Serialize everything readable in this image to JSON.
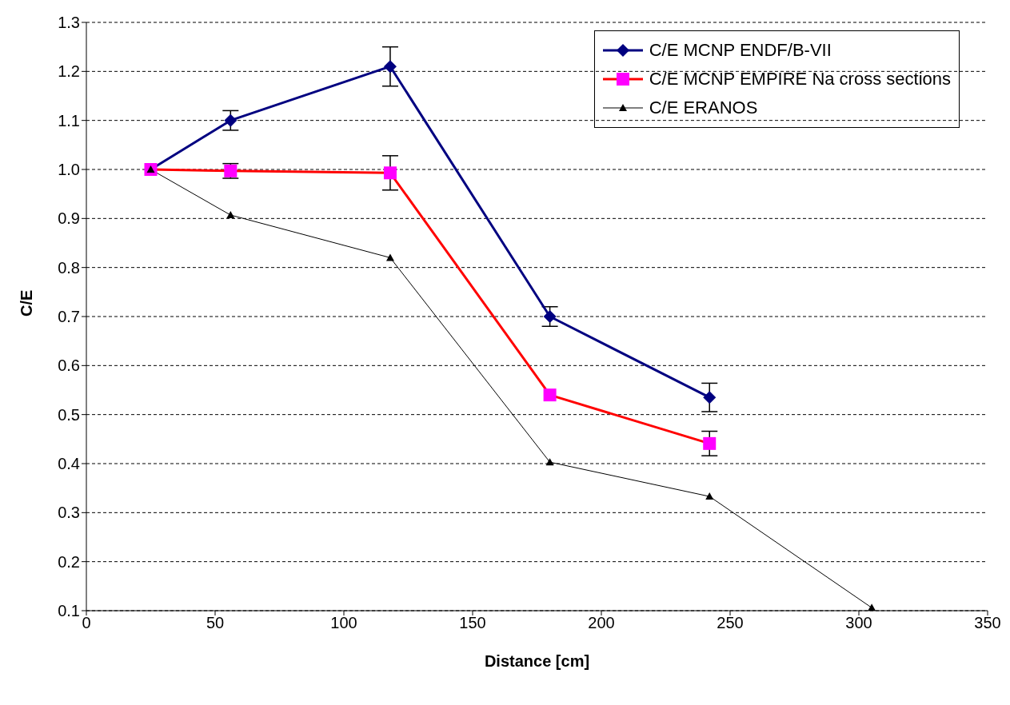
{
  "chart_data": {
    "type": "line",
    "xlabel": "Distance [cm]",
    "ylabel": "C/E",
    "xlim": [
      0,
      350
    ],
    "xticks": [
      0,
      50,
      100,
      150,
      200,
      250,
      300,
      350
    ],
    "ylim": [
      0.1,
      1.3
    ],
    "yticks": [
      {
        "value": 0.1,
        "label": "0.1"
      },
      {
        "value": 0.2,
        "label": "0.2"
      },
      {
        "value": 0.3,
        "label": "0.3"
      },
      {
        "value": 0.4,
        "label": "0.4"
      },
      {
        "value": 0.5,
        "label": "0.5"
      },
      {
        "value": 0.6,
        "label": "0.6"
      },
      {
        "value": 0.7,
        "label": "0.7"
      },
      {
        "value": 0.8,
        "label": "0.8"
      },
      {
        "value": 0.9,
        "label": "0.9"
      },
      {
        "value": 1.0,
        "label": "1.0"
      },
      {
        "value": 1.1,
        "label": "1.1"
      },
      {
        "value": 1.2,
        "label": "1.2"
      },
      {
        "value": 1.3,
        "label": "1.3"
      }
    ],
    "grid": "y",
    "legend": "top right",
    "line_style": "solid",
    "series": [
      {
        "name": "C/E MCNP ENDF/B-VII",
        "color": "#000080",
        "marker": "diamond",
        "x": [
          25,
          56,
          118,
          180,
          242
        ],
        "values": [
          1.0,
          1.1,
          1.21,
          0.7,
          0.535
        ],
        "errors": [
          null,
          0.02,
          0.04,
          0.02,
          0.029
        ]
      },
      {
        "name": "C/E MCNP EMPIRE Na cross sections",
        "color": "#ff0000",
        "colors": [
          "#ff00ff",
          "#ff00ff",
          "#ff00ff",
          "#ff00ff",
          "#ff00ff"
        ],
        "marker": "square",
        "x": [
          25,
          56,
          118,
          180,
          242
        ],
        "values": [
          1.0,
          0.997,
          0.993,
          0.54,
          0.441
        ],
        "errors": [
          null,
          0.015,
          0.035,
          null,
          0.025
        ]
      },
      {
        "name": "C/E ERANOS",
        "color": "#000000",
        "marker": "triangle",
        "x": [
          25,
          56,
          118,
          180,
          242,
          305
        ],
        "values": [
          1.0,
          0.907,
          0.82,
          0.403,
          0.333,
          0.106
        ]
      }
    ]
  }
}
